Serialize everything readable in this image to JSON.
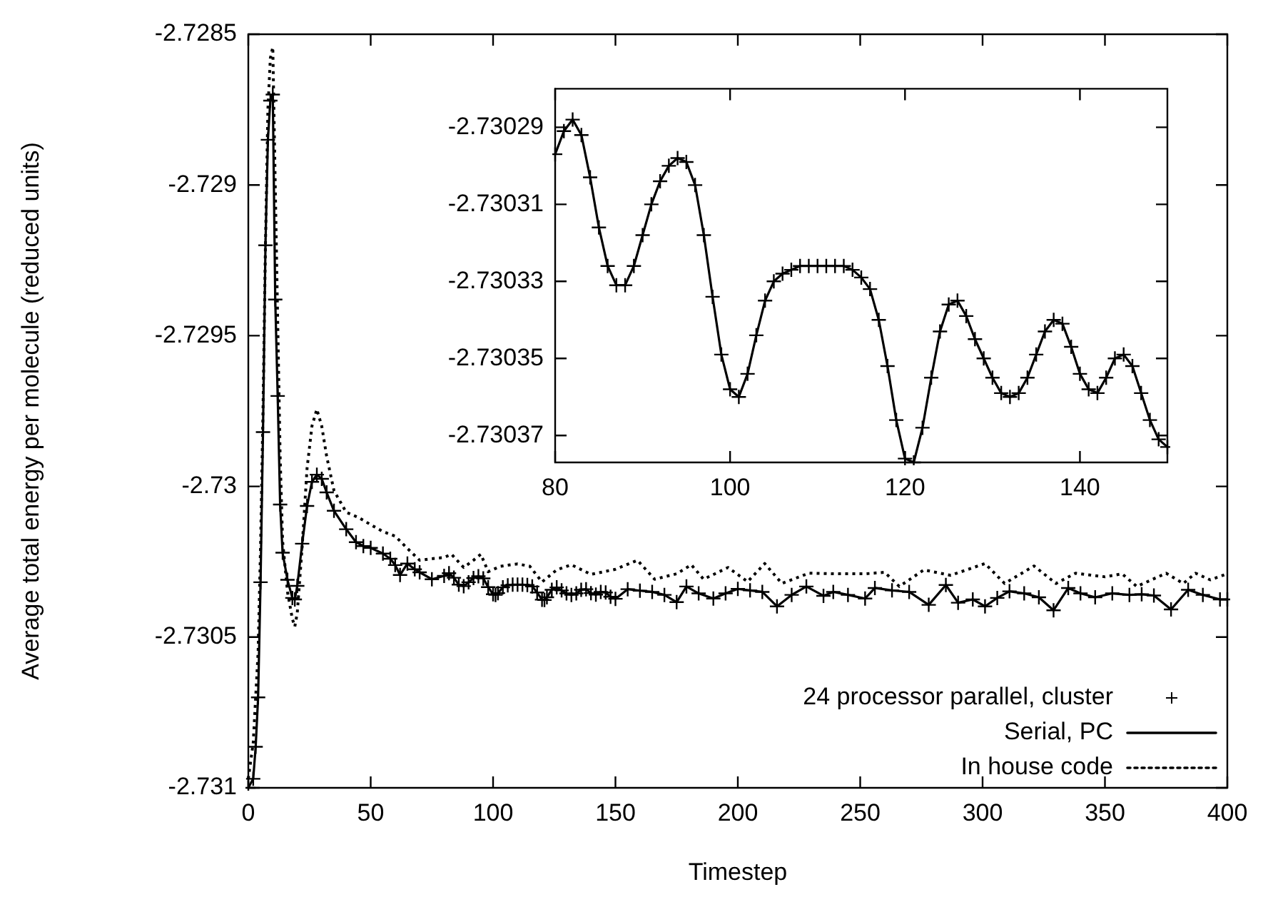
{
  "chart_data": [
    {
      "type": "line",
      "xlabel": "Timestep",
      "ylabel": "Average total energy per molecule (reduced units)",
      "xlim": [
        0,
        400
      ],
      "xticks": [
        0,
        50,
        100,
        150,
        200,
        250,
        300,
        350,
        400
      ],
      "ylim": [
        -2.731,
        -2.7285
      ],
      "yticks": [
        -2.731,
        -2.7305,
        -2.73,
        -2.7295,
        -2.729,
        -2.7285
      ],
      "legend": "bottom right",
      "x": [
        0,
        2,
        3,
        4,
        5,
        6,
        7,
        8,
        9,
        10,
        11,
        12,
        13,
        14,
        16,
        18,
        19,
        20,
        22,
        24,
        26,
        28,
        30,
        32,
        35,
        40,
        44,
        47,
        50,
        55,
        58,
        60,
        62,
        65,
        68,
        70,
        75,
        80,
        82,
        84,
        86,
        88,
        90,
        92,
        94,
        96,
        98,
        100,
        101,
        102,
        104,
        106,
        108,
        110,
        112,
        114,
        116,
        118,
        120,
        121,
        122,
        124,
        126,
        128,
        130,
        132,
        134,
        136,
        138,
        140,
        142,
        144,
        146,
        148,
        150,
        155,
        160,
        165,
        170,
        175,
        179,
        184,
        190,
        195,
        200,
        205,
        210,
        216,
        222,
        228,
        235,
        239,
        245,
        252,
        256,
        263,
        270,
        278,
        285,
        290,
        296,
        301,
        306,
        311,
        317,
        323,
        329,
        335,
        340,
        346,
        353,
        360,
        365,
        370,
        377,
        384,
        390,
        397,
        400
      ],
      "series": [
        {
          "name": "24 processor parallel, cluster",
          "type": "scatter",
          "marker": "cross",
          "color": "#000000",
          "values": [
            -2.731,
            -2.73097,
            -2.730864,
            -2.7307,
            -2.730318,
            -2.72982,
            -2.7292,
            -2.72885,
            -2.72872,
            -2.7287,
            -2.72938,
            -2.7297,
            -2.73006,
            -2.73022,
            -2.73031,
            -2.73037,
            -2.730375,
            -2.73033,
            -2.73019,
            -2.730065,
            -2.729985,
            -2.729961,
            -2.729975,
            -2.73002,
            -2.730081,
            -2.730142,
            -2.730185,
            -2.730198,
            -2.730204,
            -2.730223,
            -2.73024,
            -2.730261,
            -2.730294,
            -2.730256,
            -2.730275,
            -2.730285,
            -2.730308,
            -2.730297,
            -2.730288,
            -2.730303,
            -2.730326,
            -2.730331,
            -2.730318,
            -2.730304,
            -2.730298,
            -2.730305,
            -2.730334,
            -2.730358,
            -2.73036,
            -2.730354,
            -2.730335,
            -2.730328,
            -2.730326,
            -2.730326,
            -2.730326,
            -2.730327,
            -2.730332,
            -2.730352,
            -2.730376,
            -2.730377,
            -2.730368,
            -2.730343,
            -2.730335,
            -2.730345,
            -2.730355,
            -2.73036,
            -2.730355,
            -2.730343,
            -2.730341,
            -2.730354,
            -2.730359,
            -2.73035,
            -2.730352,
            -2.730366,
            -2.730373,
            -2.730341,
            -2.730346,
            -2.73035,
            -2.73036,
            -2.730384,
            -2.730332,
            -2.730355,
            -2.730372,
            -2.730355,
            -2.73034,
            -2.730345,
            -2.73035,
            -2.730398,
            -2.73036,
            -2.730332,
            -2.730363,
            -2.73035,
            -2.73036,
            -2.730372,
            -2.730337,
            -2.730345,
            -2.73035,
            -2.730393,
            -2.730327,
            -2.730386,
            -2.730375,
            -2.730398,
            -2.73037,
            -2.730348,
            -2.730355,
            -2.730368,
            -2.730411,
            -2.730337,
            -2.730355,
            -2.730368,
            -2.730355,
            -2.73036,
            -2.730358,
            -2.730362,
            -2.730408,
            -2.730343,
            -2.73036,
            -2.730375,
            -2.730375
          ]
        },
        {
          "name": "Serial, PC",
          "type": "line",
          "line_style": "solid",
          "color": "#000000",
          "values": [
            -2.731,
            -2.73097,
            -2.730864,
            -2.7307,
            -2.730318,
            -2.72982,
            -2.7292,
            -2.72885,
            -2.72872,
            -2.7287,
            -2.72938,
            -2.7297,
            -2.73006,
            -2.73022,
            -2.73031,
            -2.73037,
            -2.730375,
            -2.73033,
            -2.73019,
            -2.730065,
            -2.729985,
            -2.729961,
            -2.729975,
            -2.73002,
            -2.730081,
            -2.730142,
            -2.730185,
            -2.730198,
            -2.730204,
            -2.730223,
            -2.73024,
            -2.730261,
            -2.730294,
            -2.730256,
            -2.730275,
            -2.730285,
            -2.730308,
            -2.730297,
            -2.730288,
            -2.730303,
            -2.730326,
            -2.730331,
            -2.730318,
            -2.730304,
            -2.730298,
            -2.730305,
            -2.730334,
            -2.730358,
            -2.73036,
            -2.730354,
            -2.730335,
            -2.730328,
            -2.730326,
            -2.730326,
            -2.730326,
            -2.730327,
            -2.730332,
            -2.730352,
            -2.730376,
            -2.730377,
            -2.730368,
            -2.730343,
            -2.730335,
            -2.730345,
            -2.730355,
            -2.73036,
            -2.730355,
            -2.730343,
            -2.730341,
            -2.730354,
            -2.730359,
            -2.73035,
            -2.730352,
            -2.730366,
            -2.730373,
            -2.730341,
            -2.730346,
            -2.73035,
            -2.73036,
            -2.730384,
            -2.730332,
            -2.730355,
            -2.730372,
            -2.730355,
            -2.73034,
            -2.730345,
            -2.73035,
            -2.730398,
            -2.73036,
            -2.730332,
            -2.730363,
            -2.73035,
            -2.73036,
            -2.730372,
            -2.730337,
            -2.730345,
            -2.73035,
            -2.730393,
            -2.730327,
            -2.730386,
            -2.730375,
            -2.730398,
            -2.73037,
            -2.730348,
            -2.730355,
            -2.730368,
            -2.730411,
            -2.730337,
            -2.730355,
            -2.730368,
            -2.730355,
            -2.73036,
            -2.730358,
            -2.730362,
            -2.730408,
            -2.730343,
            -2.73036,
            -2.730375,
            -2.730375
          ]
        },
        {
          "name": "In house code",
          "type": "line",
          "line_style": "dotted",
          "color": "#000000",
          "x": [
            0,
            2,
            4,
            5,
            6,
            7,
            8,
            9,
            10,
            11,
            12,
            13,
            14,
            16,
            18,
            19,
            20,
            22,
            24,
            26,
            28,
            30,
            32,
            35,
            40,
            45,
            50,
            55,
            60,
            65,
            70,
            75,
            80,
            83,
            88,
            92,
            95,
            98,
            103,
            110,
            115,
            120,
            126,
            132,
            140,
            150,
            159,
            166,
            175,
            181,
            186,
            196,
            204,
            211,
            218,
            229,
            241,
            252,
            260,
            266,
            276,
            287,
            301,
            309,
            321,
            330,
            338,
            350,
            357,
            363,
            375,
            382,
            387,
            393,
            400
          ],
          "values": [
            -2.73097,
            -2.73085,
            -2.73055,
            -2.7302,
            -2.72975,
            -2.7292,
            -2.72875,
            -2.72858,
            -2.728543,
            -2.729,
            -2.72945,
            -2.7299,
            -2.73018,
            -2.73035,
            -2.73044,
            -2.730465,
            -2.73042,
            -2.7302,
            -2.72994,
            -2.7298,
            -2.729744,
            -2.7298,
            -2.7299,
            -2.730014,
            -2.730086,
            -2.730103,
            -2.730127,
            -2.73015,
            -2.730165,
            -2.730206,
            -2.730245,
            -2.73024,
            -2.730236,
            -2.730225,
            -2.730269,
            -2.730245,
            -2.730225,
            -2.730283,
            -2.730265,
            -2.730257,
            -2.730265,
            -2.730317,
            -2.730277,
            -2.73026,
            -2.730292,
            -2.730275,
            -2.730245,
            -2.730308,
            -2.73029,
            -2.73026,
            -2.730308,
            -2.730269,
            -2.730316,
            -2.730256,
            -2.730322,
            -2.730288,
            -2.73029,
            -2.73029,
            -2.730285,
            -2.730332,
            -2.730277,
            -2.730295,
            -2.730256,
            -2.730322,
            -2.730264,
            -2.730322,
            -2.730288,
            -2.7303,
            -2.73029,
            -2.730332,
            -2.730288,
            -2.730322,
            -2.730288,
            -2.73031,
            -2.73029
          ]
        }
      ]
    },
    {
      "type": "line",
      "xlim": [
        80,
        150
      ],
      "xticks": [
        80,
        100,
        120,
        140
      ],
      "ylim": [
        -2.730377,
        -2.73028
      ],
      "yticks": [
        -2.73037,
        -2.73035,
        -2.73033,
        -2.73031,
        -2.73029
      ],
      "x": [
        80,
        81,
        82,
        83,
        84,
        85,
        86,
        87,
        88,
        89,
        90,
        91,
        92,
        93,
        94,
        95,
        96,
        97,
        98,
        99,
        100,
        101,
        102,
        103,
        104,
        105,
        106,
        107,
        108,
        109,
        110,
        111,
        112,
        113,
        114,
        115,
        116,
        117,
        118,
        119,
        120,
        121,
        122,
        123,
        124,
        125,
        126,
        127,
        128,
        129,
        130,
        131,
        132,
        133,
        134,
        135,
        136,
        137,
        138,
        139,
        140,
        141,
        142,
        143,
        144,
        145,
        146,
        147,
        148,
        149,
        150
      ],
      "series": [
        {
          "type": "scatter",
          "marker": "cross",
          "color": "#000000",
          "values": [
            -2.730297,
            -2.730291,
            -2.730288,
            -2.730292,
            -2.730303,
            -2.730316,
            -2.730326,
            -2.730331,
            -2.730331,
            -2.730326,
            -2.730318,
            -2.73031,
            -2.730304,
            -2.7303,
            -2.730298,
            -2.730299,
            -2.730305,
            -2.730318,
            -2.730334,
            -2.730349,
            -2.730358,
            -2.73036,
            -2.730354,
            -2.730344,
            -2.730335,
            -2.73033,
            -2.730328,
            -2.730327,
            -2.730326,
            -2.730326,
            -2.730326,
            -2.730326,
            -2.730326,
            -2.730326,
            -2.730327,
            -2.730329,
            -2.730332,
            -2.73034,
            -2.730352,
            -2.730366,
            -2.730376,
            -2.730377,
            -2.730368,
            -2.730355,
            -2.730343,
            -2.730336,
            -2.730335,
            -2.730339,
            -2.730345,
            -2.73035,
            -2.730355,
            -2.730359,
            -2.73036,
            -2.730359,
            -2.730355,
            -2.730349,
            -2.730343,
            -2.73034,
            -2.730341,
            -2.730347,
            -2.730354,
            -2.730358,
            -2.730359,
            -2.730355,
            -2.73035,
            -2.730349,
            -2.730352,
            -2.730359,
            -2.730366,
            -2.730371,
            -2.730373
          ]
        },
        {
          "type": "line",
          "line_style": "solid",
          "color": "#000000",
          "values": [
            -2.730297,
            -2.730291,
            -2.730288,
            -2.730292,
            -2.730303,
            -2.730316,
            -2.730326,
            -2.730331,
            -2.730331,
            -2.730326,
            -2.730318,
            -2.73031,
            -2.730304,
            -2.7303,
            -2.730298,
            -2.730299,
            -2.730305,
            -2.730318,
            -2.730334,
            -2.730349,
            -2.730358,
            -2.73036,
            -2.730354,
            -2.730344,
            -2.730335,
            -2.73033,
            -2.730328,
            -2.730327,
            -2.730326,
            -2.730326,
            -2.730326,
            -2.730326,
            -2.730326,
            -2.730326,
            -2.730327,
            -2.730329,
            -2.730332,
            -2.73034,
            -2.730352,
            -2.730366,
            -2.730376,
            -2.730377,
            -2.730368,
            -2.730355,
            -2.730343,
            -2.730336,
            -2.730335,
            -2.730339,
            -2.730345,
            -2.73035,
            -2.730355,
            -2.730359,
            -2.73036,
            -2.730359,
            -2.730355,
            -2.730349,
            -2.730343,
            -2.73034,
            -2.730341,
            -2.730347,
            -2.730354,
            -2.730358,
            -2.730359,
            -2.730355,
            -2.73035,
            -2.730349,
            -2.730352,
            -2.730359,
            -2.730366,
            -2.730371,
            -2.730373
          ]
        }
      ]
    }
  ]
}
